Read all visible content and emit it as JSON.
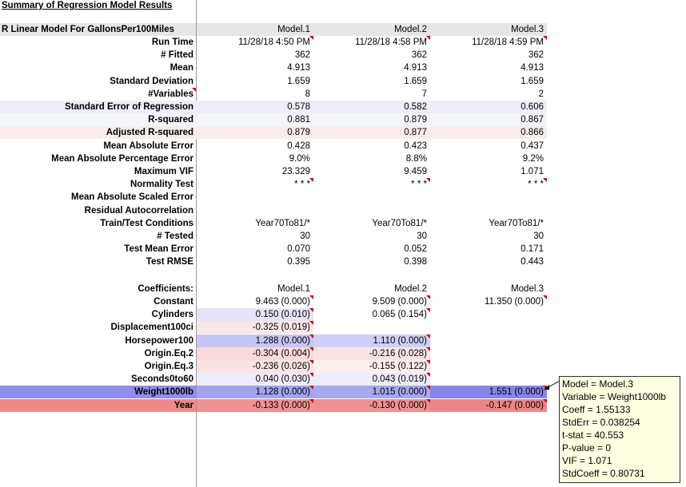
{
  "title": "Summary of Regression Model Results",
  "header_label": "R Linear Model For GallonsPer100Miles",
  "models": [
    "Model.1",
    "Model.2",
    "Model.3"
  ],
  "stats": [
    {
      "label": "Run Time",
      "values": [
        "11/28/18 4:50 PM",
        "11/28/18 4:58 PM",
        "11/28/18 4:59 PM"
      ],
      "comment": [
        true,
        true,
        true
      ]
    },
    {
      "label": "# Fitted",
      "values": [
        "362",
        "362",
        "362"
      ]
    },
    {
      "label": "Mean",
      "values": [
        "4.913",
        "4.913",
        "4.913"
      ]
    },
    {
      "label": "Standard Deviation",
      "values": [
        "1.659",
        "1.659",
        "1.659"
      ]
    },
    {
      "label": "#Variables",
      "values": [
        "8",
        "7",
        "2"
      ],
      "label_comment": true
    },
    {
      "label": "Standard Error of Regression",
      "values": [
        "0.578",
        "0.582",
        "0.606"
      ],
      "fill": "#eeeefa"
    },
    {
      "label": "R-squared",
      "values": [
        "0.881",
        "0.879",
        "0.867"
      ],
      "fill": "#f4f4fc"
    },
    {
      "label": "Adjusted R-squared",
      "values": [
        "0.879",
        "0.877",
        "0.866"
      ],
      "fill": "#fbecec"
    },
    {
      "label": "Mean Absolute Error",
      "values": [
        "0.428",
        "0.423",
        "0.437"
      ]
    },
    {
      "label": "Mean Absolute Percentage Error",
      "values": [
        "9.0%",
        "8.8%",
        "9.2%"
      ]
    },
    {
      "label": "Maximum VIF",
      "values": [
        "23.329",
        "9.459",
        "1.071"
      ]
    },
    {
      "label": "Normality Test",
      "values": [
        "* * *",
        "* * *",
        "* * *"
      ],
      "comment": [
        true,
        true,
        true
      ]
    },
    {
      "label": "Mean Absolute Scaled Error",
      "values": [
        "",
        "",
        ""
      ]
    },
    {
      "label": "Residual Autocorrelation",
      "values": [
        "",
        "",
        ""
      ]
    },
    {
      "label": "Train/Test Conditions",
      "values": [
        "Year70To81/*",
        "Year70To81/*",
        "Year70To81/*"
      ]
    },
    {
      "label": "# Tested",
      "values": [
        "30",
        "30",
        "30"
      ]
    },
    {
      "label": "Test Mean Error",
      "values": [
        "0.070",
        "0.052",
        "0.171"
      ]
    },
    {
      "label": "Test RMSE",
      "values": [
        "0.395",
        "0.398",
        "0.443"
      ]
    }
  ],
  "coefficients_label": "Coefficients:",
  "coefficients": [
    {
      "label": "Constant",
      "values": [
        "9.463  (0.000)",
        "9.509  (0.000)",
        "11.350  (0.000)"
      ],
      "fills": [
        "",
        "",
        ""
      ],
      "comment": [
        true,
        true,
        true
      ]
    },
    {
      "label": "Cylinders",
      "values": [
        "0.150  (0.010)",
        "0.065  (0.154)",
        ""
      ],
      "fills": [
        "#e4e4f8",
        "",
        ""
      ],
      "comment": [
        true,
        true,
        false
      ]
    },
    {
      "label": "Displacement100ci",
      "values": [
        "-0.325  (0.019)",
        "",
        ""
      ],
      "fills": [
        "#fbe6e6",
        "",
        ""
      ],
      "comment": [
        true,
        false,
        false
      ]
    },
    {
      "label": "Horsepower100",
      "values": [
        "1.288  (0.000)",
        "1.110  (0.000)",
        ""
      ],
      "fills": [
        "#c6c6f4",
        "#cfcff6",
        ""
      ],
      "comment": [
        true,
        true,
        false
      ]
    },
    {
      "label": "Origin.Eq.2",
      "values": [
        "-0.304  (0.004)",
        "-0.216  (0.028)",
        ""
      ],
      "fills": [
        "#f9d9d9",
        "#fbe3e3",
        ""
      ],
      "comment": [
        true,
        true,
        false
      ]
    },
    {
      "label": "Origin.Eq.3",
      "values": [
        "-0.236  (0.026)",
        "-0.155  (0.122)",
        ""
      ],
      "fills": [
        "#fbe3e3",
        "#fdeeee",
        ""
      ],
      "comment": [
        true,
        true,
        false
      ]
    },
    {
      "label": "Seconds0to60",
      "values": [
        "0.040  (0.030)",
        "0.043  (0.019)",
        ""
      ],
      "fills": [
        "#ececfa",
        "#ececfa",
        ""
      ],
      "comment": [
        true,
        true,
        false
      ]
    },
    {
      "label": "Weight1000lb",
      "values": [
        "1.128  (0.000)",
        "1.015  (0.000)",
        "1.551  (0.000)"
      ],
      "fills": [
        "#a3a3ee",
        "#a8a8ef",
        "#8585ea"
      ],
      "label_fill": "#8f8fec",
      "comment": [
        true,
        true,
        true
      ]
    },
    {
      "label": "Year",
      "values": [
        "-0.133  (0.000)",
        "-0.130  (0.000)",
        "-0.147  (0.000)"
      ],
      "fills": [
        "#f09090",
        "#f09090",
        "#ee8585"
      ],
      "label_fill": "#ef8a8a",
      "comment": [
        true,
        true,
        true
      ]
    }
  ],
  "tooltip": [
    "Model = Model.3",
    "Variable = Weight1000lb",
    "Coeff = 1.55133",
    "StdErr = 0.038254",
    "t-stat = 40.553",
    "P-value = 0",
    "VIF = 1.071",
    "StdCoeff = 0.80731"
  ],
  "colors": {
    "header_band": "#e6e6e6",
    "comment_marker": "#d40000",
    "tooltip_bg": "#ffffe1"
  }
}
